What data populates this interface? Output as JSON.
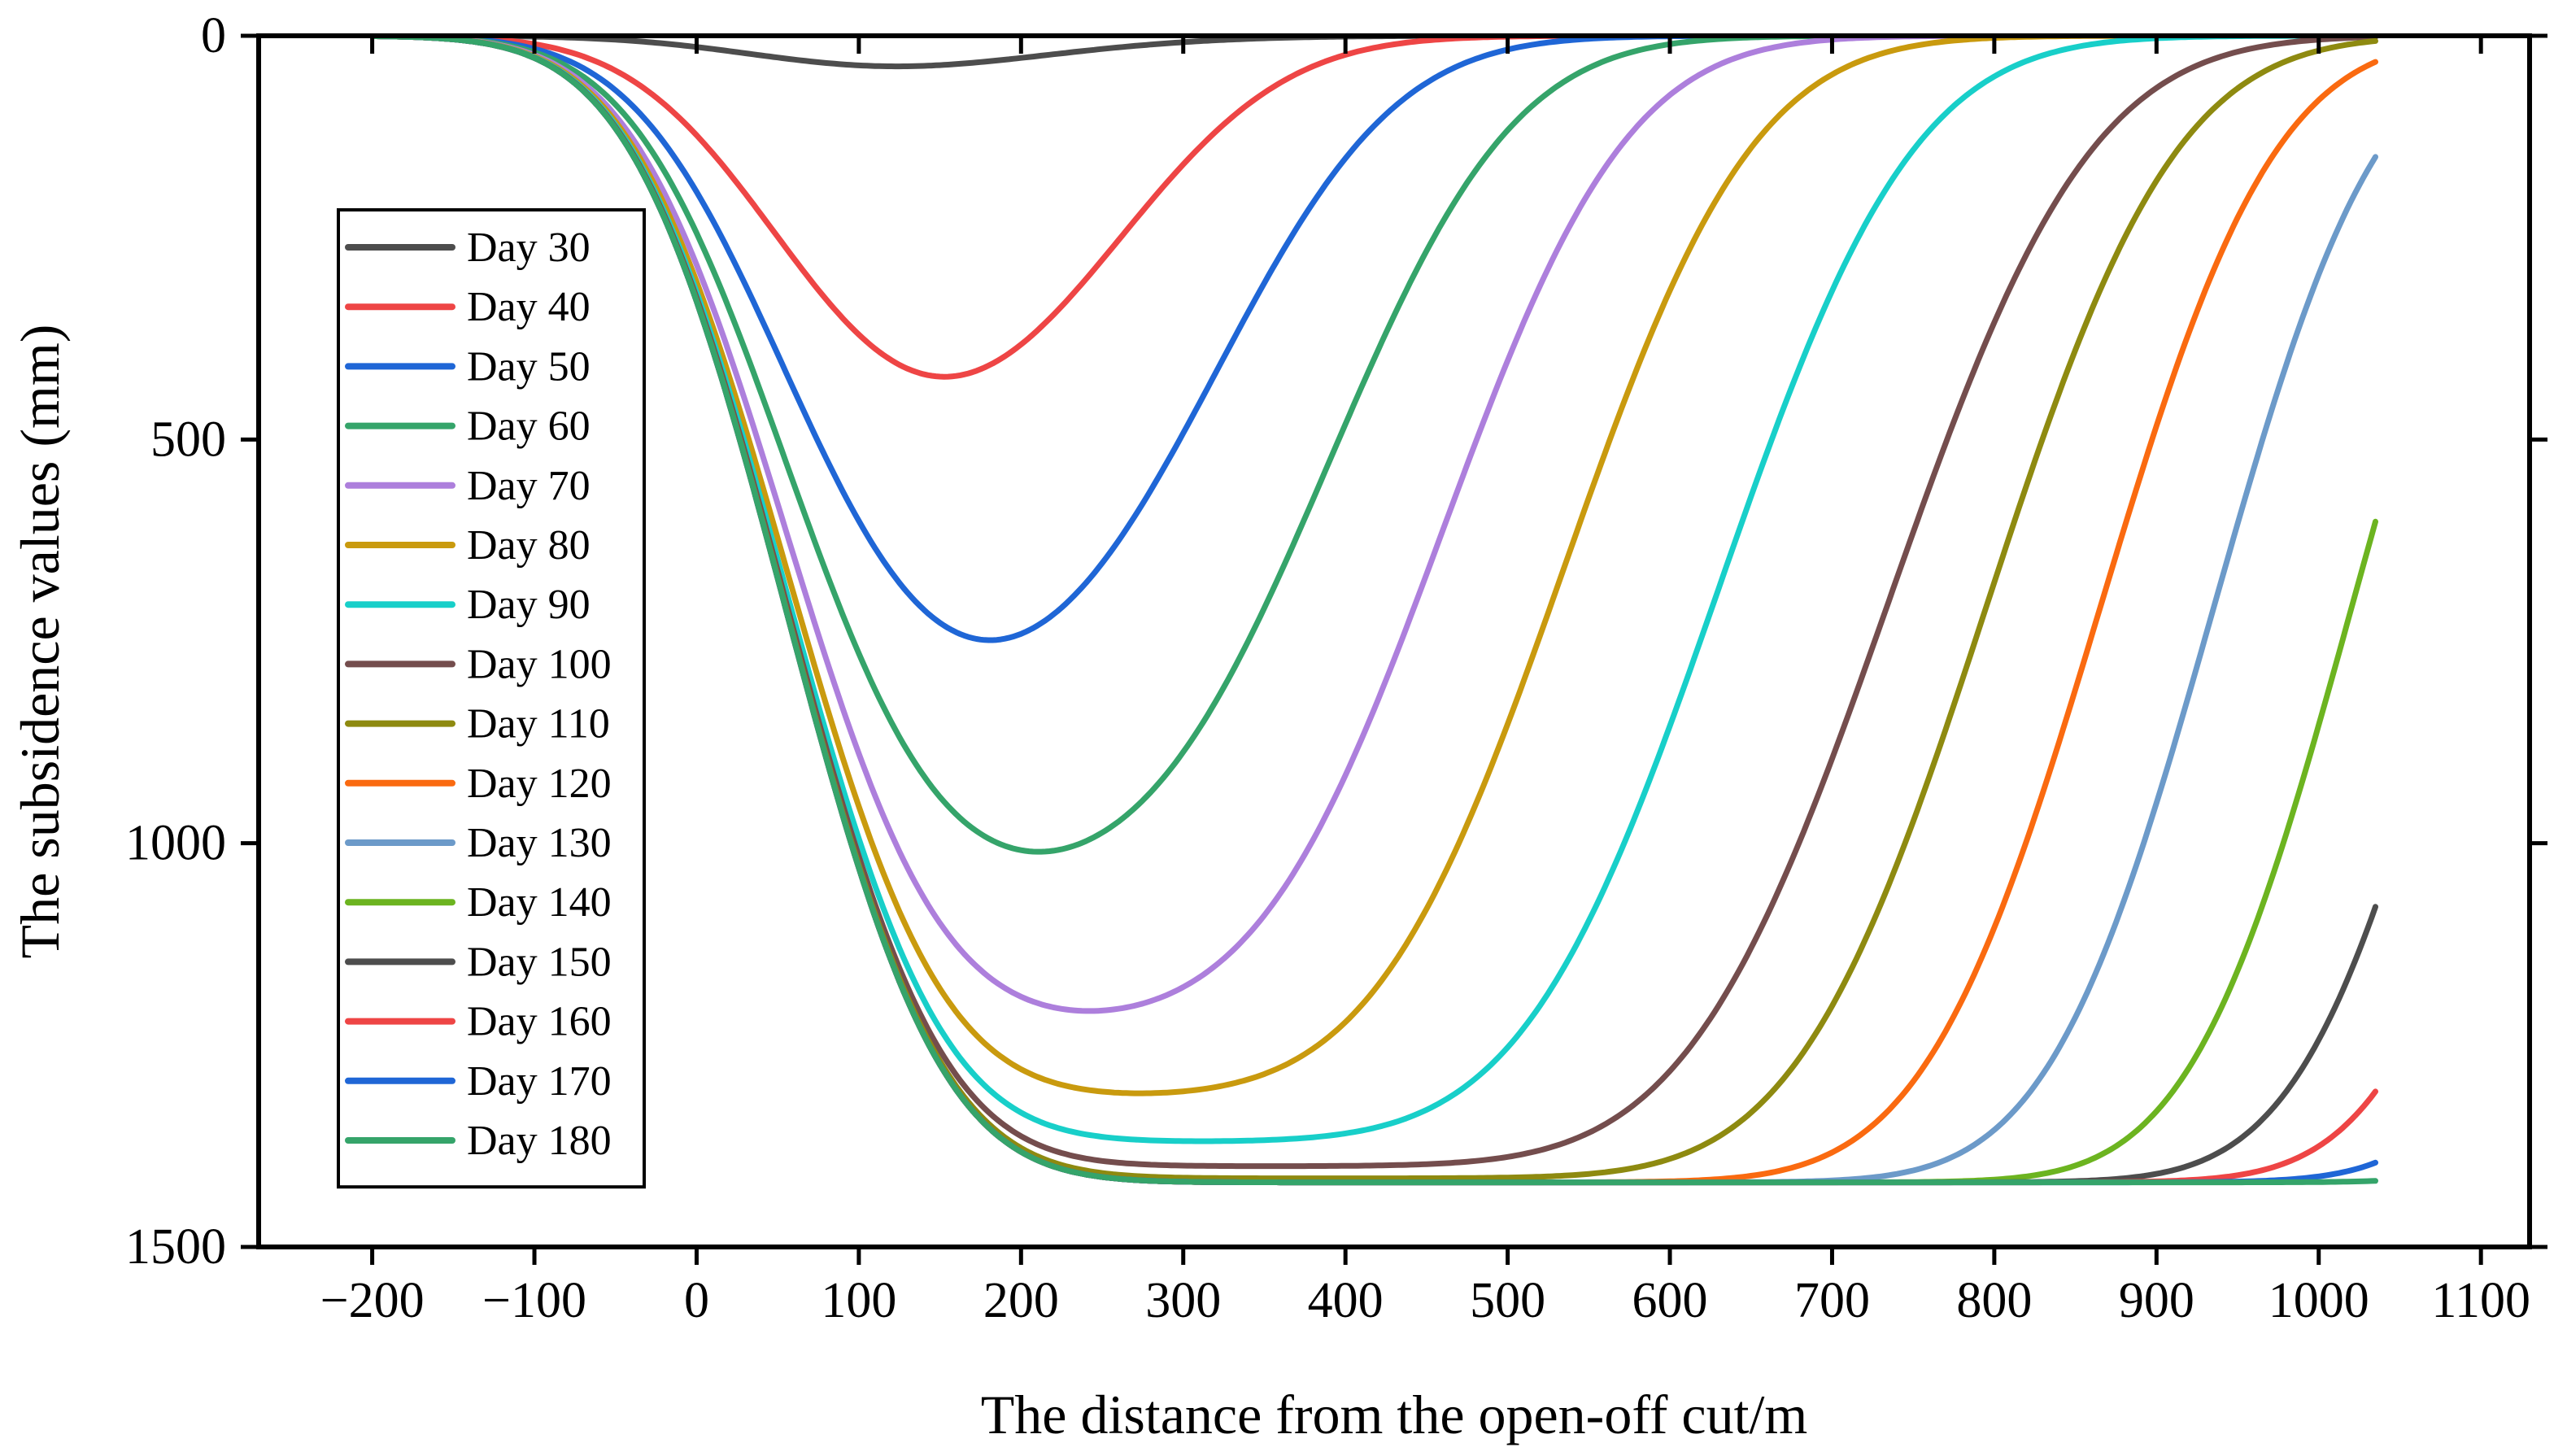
{
  "chart_data": {
    "type": "line",
    "title": "",
    "xlabel": "The distance from the open-off cut/m",
    "ylabel": "The subsidence values (mm)",
    "xlim": [
      -270,
      1130
    ],
    "ylim": [
      0,
      1500
    ],
    "y_inverted": true,
    "x_ticks": [
      -200,
      -100,
      0,
      100,
      200,
      300,
      400,
      500,
      600,
      700,
      800,
      900,
      1000,
      1100
    ],
    "y_ticks": [
      0,
      500,
      1000,
      1500
    ],
    "x_tick_labels": [
      "−200",
      "−100",
      "0",
      "100",
      "200",
      "300",
      "400",
      "500",
      "600",
      "700",
      "800",
      "900",
      "1000",
      "1100"
    ],
    "y_tick_labels": [
      "0",
      "500",
      "1000",
      "1500"
    ],
    "grid": false,
    "legend_position": "left",
    "x_start": -200,
    "x_end": 1035,
    "series": [
      {
        "name": "Day 30",
        "color": "#4d4d4d",
        "max_subsidence": 80,
        "front": 165,
        "spread": 105
      },
      {
        "name": "Day 40",
        "color": "#ee4545",
        "max_subsidence": 535,
        "front": 255,
        "spread": 85
      },
      {
        "name": "Day 50",
        "color": "#1f66d6",
        "max_subsidence": 835,
        "front": 320,
        "spread": 88
      },
      {
        "name": "Day 60",
        "color": "#35a46a",
        "max_subsidence": 1055,
        "front": 390,
        "spread": 90
      },
      {
        "name": "Day 70",
        "color": "#ad7fdc",
        "max_subsidence": 1225,
        "front": 460,
        "spread": 90
      },
      {
        "name": "Day 80",
        "color": "#c99a0e",
        "max_subsidence": 1315,
        "front": 535,
        "spread": 92
      },
      {
        "name": "Day 90",
        "color": "#18cfc9",
        "max_subsidence": 1370,
        "front": 630,
        "spread": 95
      },
      {
        "name": "Day 100",
        "color": "#744d4d",
        "max_subsidence": 1400,
        "front": 735,
        "spread": 98
      },
      {
        "name": "Day 110",
        "color": "#8e8a10",
        "max_subsidence": 1415,
        "front": 795,
        "spread": 92
      },
      {
        "name": "Day 120",
        "color": "#fa6a10",
        "max_subsidence": 1420,
        "front": 865,
        "spread": 85
      },
      {
        "name": "Day 130",
        "color": "#6c9ac9",
        "max_subsidence": 1420,
        "front": 935,
        "spread": 80
      },
      {
        "name": "Day 140",
        "color": "#6cb420",
        "max_subsidence": 1420,
        "front": 1020,
        "spread": 78
      },
      {
        "name": "Day 150",
        "color": "#4d4d4d",
        "max_subsidence": 1420,
        "front": 1090,
        "spread": 78
      },
      {
        "name": "Day 160",
        "color": "#ee4545",
        "max_subsidence": 1420,
        "front": 1145,
        "spread": 78
      },
      {
        "name": "Day 170",
        "color": "#1f66d6",
        "max_subsidence": 1420,
        "front": 1200,
        "spread": 78
      },
      {
        "name": "Day 180",
        "color": "#35a46a",
        "max_subsidence": 1420,
        "front": 1270,
        "spread": 78
      }
    ]
  }
}
